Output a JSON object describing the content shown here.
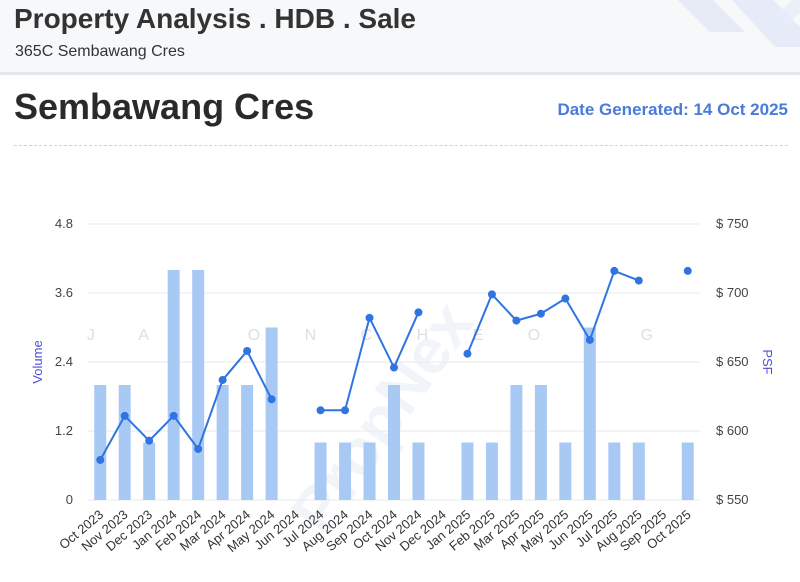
{
  "header": {
    "title": "Property Analysis . HDB . Sale",
    "address": "365C Sembawang Cres"
  },
  "page": {
    "street": "Sembawang Cres",
    "date_generated": "Date Generated: 14 Oct 2025"
  },
  "colors": {
    "accent": "#4a7bd9",
    "bar": "#a9c9f5",
    "line": "#2f74e0"
  },
  "chart_data": {
    "type": "bar+line",
    "categories": [
      "Oct 2023",
      "Nov 2023",
      "Dec 2023",
      "Jan 2024",
      "Feb 2024",
      "Mar 2024",
      "Apr 2024",
      "May 2024",
      "Jun 2024",
      "Jul 2024",
      "Aug 2024",
      "Sep 2024",
      "Oct 2024",
      "Nov 2024",
      "Dec 2024",
      "Jan 2025",
      "Feb 2025",
      "Mar 2025",
      "Apr 2025",
      "May 2025",
      "Jun 2025",
      "Jul 2025",
      "Aug 2025",
      "Sep 2025",
      "Oct 2025"
    ],
    "series": [
      {
        "type": "bar",
        "axis": "left",
        "values": [
          2,
          2,
          1,
          4,
          4,
          2,
          2,
          3,
          0,
          1,
          1,
          1,
          2,
          1,
          0,
          1,
          1,
          2,
          2,
          1,
          3,
          1,
          1,
          0,
          1
        ]
      },
      {
        "type": "line",
        "axis": "right",
        "values": [
          579,
          611,
          593,
          611,
          587,
          637,
          658,
          623,
          null,
          615,
          615,
          682,
          646,
          686,
          null,
          656,
          699,
          680,
          685,
          696,
          666,
          716,
          709,
          null,
          716
        ]
      }
    ],
    "ylabel_left": "Volume",
    "ylabel_right": "PSF",
    "ylim_left": [
      0,
      4.8
    ],
    "ylim_right": [
      550,
      750
    ],
    "yticks_left": [
      "0",
      "1.2",
      "2.4",
      "3.6",
      "4.8"
    ],
    "yticks_right": [
      "$ 550",
      "$ 600",
      "$ 650",
      "$ 700",
      "$ 750"
    ],
    "grid": true
  }
}
